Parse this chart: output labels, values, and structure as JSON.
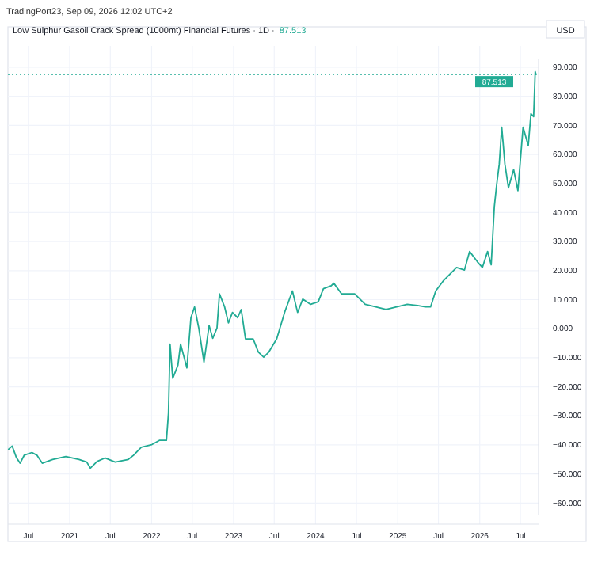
{
  "chart_data": {
    "type": "line",
    "title": "Low Sulphur Gasoil Crack Spread (1000mt) Financial Futures · 1D ·",
    "ylabel": "USD",
    "annotations": [
      "TradingPort23, Sep 09, 2026 12:02 UTC+2",
      "87.513"
    ],
    "x": [
      "2020-04-04",
      "2020-04-20",
      "2020-05-09",
      "2020-05-25",
      "2020-06-13",
      "2020-07-17",
      "2020-08-09",
      "2020-09-01",
      "2020-10-17",
      "2020-12-15",
      "2021-02-12",
      "2021-03-18",
      "2021-04-03",
      "2021-05-03",
      "2021-06-07",
      "2021-07-23",
      "2021-09-19",
      "2021-10-12",
      "2021-11-16",
      "2022-01-02",
      "2022-02-06",
      "2022-03-08",
      "2022-03-17",
      "2022-03-24",
      "2022-04-05",
      "2022-04-28",
      "2022-05-10",
      "2022-06-07",
      "2022-06-25",
      "2022-07-11",
      "2022-07-30",
      "2022-08-22",
      "2022-09-14",
      "2022-09-30",
      "2022-10-19",
      "2022-10-30",
      "2022-11-22",
      "2022-12-09",
      "2022-12-27",
      "2023-01-19",
      "2023-02-04",
      "2023-02-23",
      "2023-03-29",
      "2023-04-21",
      "2023-05-15",
      "2023-06-07",
      "2023-07-12",
      "2023-08-16",
      "2023-09-20",
      "2023-10-13",
      "2023-11-05",
      "2023-12-10",
      "2024-01-13",
      "2024-02-05",
      "2024-03-11",
      "2024-03-22",
      "2024-04-26",
      "2024-06-23",
      "2024-08-09",
      "2024-09-25",
      "2024-11-10",
      "2024-12-27",
      "2025-02-12",
      "2025-03-30",
      "2025-05-04",
      "2025-05-27",
      "2025-06-19",
      "2025-07-24",
      "2025-08-28",
      "2025-09-20",
      "2025-10-25",
      "2025-11-17",
      "2025-12-22",
      "2026-01-13",
      "2026-02-05",
      "2026-02-21",
      "2026-03-07",
      "2026-03-17",
      "2026-03-29",
      "2026-04-09",
      "2026-04-23",
      "2026-05-09",
      "2026-06-01",
      "2026-06-20",
      "2026-07-13",
      "2026-08-05",
      "2026-08-17",
      "2026-08-29",
      "2026-09-05",
      "2026-09-09"
    ],
    "series": [
      {
        "color": "#22ab94",
        "values": [
          -41.5,
          -40.4,
          -44.4,
          -46.3,
          -43.5,
          -42.6,
          -43.6,
          -46.3,
          -45,
          -44,
          -45,
          -45.9,
          -48,
          -45.7,
          -44.5,
          -45.9,
          -45,
          -43.6,
          -40.8,
          -39.9,
          -38.4,
          -38.4,
          -29,
          -5.3,
          -17.1,
          -12.6,
          -5.3,
          -13.5,
          3.8,
          7.5,
          0.2,
          -11.5,
          1.1,
          -3.3,
          0.2,
          12,
          7.5,
          2,
          5.6,
          3.8,
          6.6,
          -3.5,
          -3.5,
          -8,
          -9.8,
          -8,
          -3.5,
          5.6,
          13,
          5.6,
          10.2,
          8.4,
          9.3,
          13.8,
          14.8,
          15.7,
          12,
          12,
          8.4,
          7.5,
          6.6,
          7.5,
          8.4,
          8,
          7.5,
          7.5,
          13,
          16.6,
          19.3,
          21.1,
          20.2,
          26.6,
          23,
          21.1,
          26.6,
          22,
          42,
          49.3,
          56.7,
          69.4,
          56.7,
          48.5,
          54.8,
          47.5,
          69.4,
          63,
          74,
          73,
          88.5,
          87.5
        ]
      }
    ],
    "xlim": [
      "2020-04-01",
      "2026-09-20"
    ],
    "xticks": [
      {
        "value": "2020-07-01",
        "label": "Jul"
      },
      {
        "value": "2021-01-01",
        "label": "2021"
      },
      {
        "value": "2021-07-01",
        "label": "Jul"
      },
      {
        "value": "2022-01-01",
        "label": "2022"
      },
      {
        "value": "2022-07-01",
        "label": "Jul"
      },
      {
        "value": "2023-01-01",
        "label": "2023"
      },
      {
        "value": "2023-07-01",
        "label": "Jul"
      },
      {
        "value": "2024-01-01",
        "label": "2024"
      },
      {
        "value": "2024-07-01",
        "label": "Jul"
      },
      {
        "value": "2025-01-01",
        "label": "2025"
      },
      {
        "value": "2025-07-01",
        "label": "Jul"
      },
      {
        "value": "2026-01-01",
        "label": "2026"
      },
      {
        "value": "2026-07-01",
        "label": "Jul"
      }
    ],
    "ylim": [
      -64,
      93
    ],
    "yticks": [
      {
        "value": -60,
        "label": "−60.000"
      },
      {
        "value": -50,
        "label": "−50.000"
      },
      {
        "value": -40,
        "label": "−40.000"
      },
      {
        "value": -30,
        "label": "−30.000"
      },
      {
        "value": -20,
        "label": "−20.000"
      },
      {
        "value": -10,
        "label": "−10.000"
      },
      {
        "value": 0,
        "label": "0.000"
      },
      {
        "value": 10,
        "label": "10.000"
      },
      {
        "value": 20,
        "label": "20.000"
      },
      {
        "value": 30,
        "label": "30.000"
      },
      {
        "value": 40,
        "label": "40.000"
      },
      {
        "value": 50,
        "label": "50.000"
      },
      {
        "value": 60,
        "label": "60.000"
      },
      {
        "value": 70,
        "label": "70.000"
      },
      {
        "value": 80,
        "label": "80.000"
      },
      {
        "value": 90,
        "label": "90.000"
      }
    ],
    "ref_lines": [
      {
        "axis": "y",
        "value": 87.513,
        "label": "87.513",
        "color": "#22ab94",
        "line_style": "dotted"
      }
    ],
    "grid": true,
    "line_style": "solid",
    "marker": "none"
  }
}
